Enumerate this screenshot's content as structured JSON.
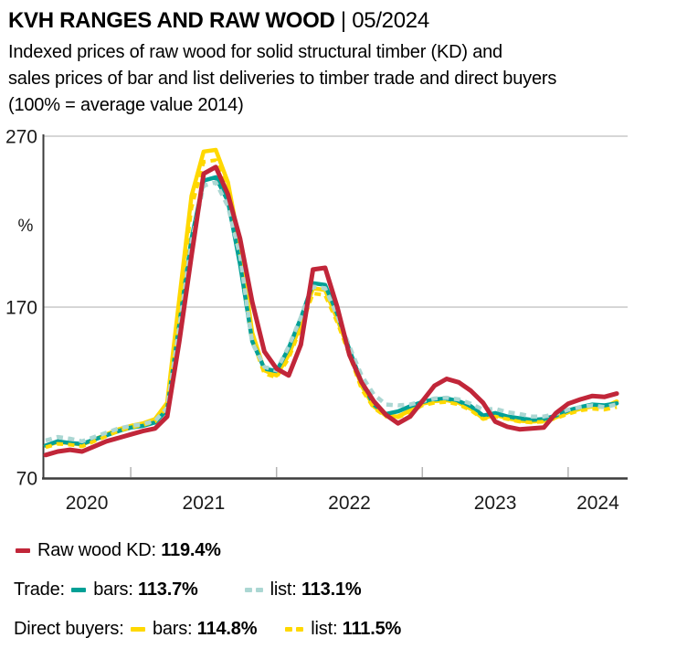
{
  "header": {
    "title": "KVH RANGES AND RAW WOOD",
    "suffix": " | 05/2024",
    "subtitle_line1": "Indexed prices of raw wood for solid structural timber (KD) and",
    "subtitle_line2": "sales prices of bar and list deliveries to timber trade and direct buyers",
    "subtitle_line3": "(100% = average value 2014)"
  },
  "colors": {
    "raw_wood_red": "#c12639",
    "trade_teal": "#00a096",
    "trade_list_light_teal": "#abd7d3",
    "direct_yellow": "#ffd800",
    "grid_gray": "#c9c9c9",
    "axis_gray": "#3c3c3c",
    "tick_gray": "#b3b3b3",
    "label_color": "#1a1a1a"
  },
  "legend": {
    "raw": {
      "label": "Raw wood KD: ",
      "value": "119.4%"
    },
    "trade": {
      "label": "Trade: ",
      "bars_label": "bars: ",
      "bars_value": "113.7%",
      "list_label": "list: ",
      "list_value": "113.1%"
    },
    "direct": {
      "label": "Direct buyers: ",
      "bars_label": "bars: ",
      "bars_value": "114.8%",
      "list_label": "list: ",
      "list_value": "111.5%"
    }
  },
  "chart_data": {
    "type": "line",
    "title": "Indexed prices, 100% = average value 2014",
    "ylabel": "%",
    "ylim": [
      70,
      270
    ],
    "yticks": [
      70,
      170,
      270
    ],
    "grid_yticks": [
      170,
      270
    ],
    "xticklabels": [
      "2020",
      "2021",
      "2022",
      "2023",
      "2024"
    ],
    "x_monthly": {
      "start": "2020-06",
      "end": "2024-05",
      "count": 48
    },
    "year_start_tick_indices": [
      7,
      19,
      31,
      43
    ],
    "legend_position": "below",
    "series": [
      {
        "name": "Raw wood KD",
        "current": "119.4%",
        "color": "#c12639",
        "line": "solid",
        "width": 5,
        "draw_order": 5,
        "values": [
          83.5,
          85.5,
          86.5,
          85.5,
          88.5,
          91.5,
          93.5,
          95.5,
          97.5,
          99,
          106,
          150,
          200,
          248,
          252,
          236,
          210,
          173,
          144,
          134,
          130,
          148,
          192,
          193,
          170,
          142,
          126,
          115,
          107,
          102,
          106,
          115,
          124,
          128,
          126,
          121,
          114,
          103,
          100,
          98.5,
          99,
          99.5,
          108,
          113.5,
          116,
          118,
          117.5,
          119.4
        ]
      },
      {
        "name": "Trade bars",
        "current": "113.7%",
        "color": "#00a096",
        "line": "solid",
        "width": 4.5,
        "draw_order": 2,
        "values": [
          89,
          91.5,
          90.5,
          90,
          92.5,
          95,
          97.5,
          99.5,
          100.5,
          102.5,
          110,
          160,
          210,
          244,
          246,
          232,
          195,
          150,
          134,
          132.5,
          146,
          163.5,
          184,
          183,
          166,
          145,
          126,
          113,
          107.5,
          109,
          112,
          114.5,
          116,
          116.5,
          115,
          112,
          106.5,
          108,
          106,
          105,
          104,
          104.5,
          106.5,
          109.5,
          111.5,
          113,
          112.5,
          113.7
        ]
      },
      {
        "name": "Trade list",
        "current": "113.1%",
        "color": "#abd7d3",
        "line": "dashed",
        "width": 4.5,
        "draw_order": 4,
        "values": [
          92,
          94,
          93,
          91.5,
          94,
          96.5,
          99,
          100.5,
          101.5,
          103.5,
          111,
          158,
          208,
          241,
          243,
          229,
          200,
          149,
          135,
          133,
          147,
          164,
          182,
          181,
          165,
          147,
          130,
          119,
          113,
          112.5,
          113,
          115,
          116.5,
          117,
          116,
          113.5,
          110,
          110.5,
          108.5,
          107.5,
          106,
          106,
          107.5,
          110,
          111.5,
          112.5,
          111.5,
          113.1
        ]
      },
      {
        "name": "Direct buyers bars",
        "current": "114.8%",
        "color": "#ffd800",
        "line": "solid",
        "width": 4.5,
        "draw_order": 1,
        "values": [
          89,
          91,
          90.5,
          89.5,
          92.5,
          95.5,
          98.5,
          100.5,
          102,
          104.5,
          114,
          175,
          235,
          261,
          262,
          243,
          205,
          155,
          133,
          130,
          142,
          160,
          181,
          180,
          163,
          144,
          124,
          112,
          106.5,
          106,
          109.5,
          113.5,
          115,
          115.5,
          114,
          110.5,
          105,
          107,
          105,
          103.5,
          103,
          103.5,
          105.5,
          108.5,
          110.5,
          112,
          111.5,
          114.8
        ]
      },
      {
        "name": "Direct buyers list",
        "current": "111.5%",
        "color": "#ffd800",
        "line": "dashed",
        "width": 4,
        "draw_order": 3,
        "values": [
          88,
          90,
          89.5,
          88.5,
          91.5,
          94.5,
          97.5,
          99.5,
          101,
          103,
          112,
          170,
          228,
          255,
          256,
          238,
          200,
          151,
          131,
          129,
          140,
          158,
          178,
          177,
          161,
          142,
          122,
          111,
          106,
          105.5,
          108.5,
          112.5,
          114,
          114.5,
          113,
          109.5,
          104.5,
          106,
          104.5,
          103,
          102.5,
          103,
          105,
          107.5,
          109.5,
          110.5,
          110,
          111.5
        ]
      }
    ]
  }
}
